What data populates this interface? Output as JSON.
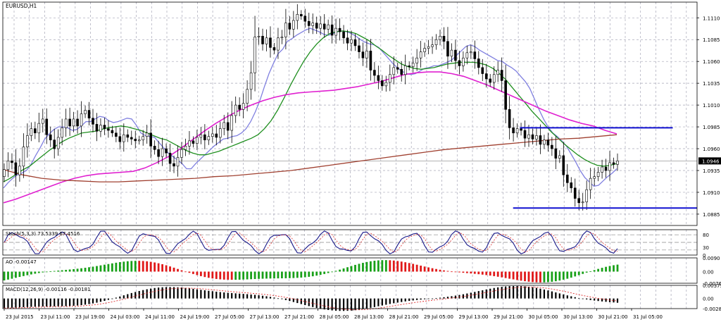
{
  "chart_data": {
    "type": "candlestick",
    "symbol_label": "EURUSD,H1",
    "price_axis": {
      "ylim": [
        1.0872,
        1.1128
      ],
      "ticks": [
        "1.1110",
        "1.1085",
        "1.1060",
        "1.1035",
        "1.1010",
        "1.0985",
        "1.0960",
        "1.0935",
        "1.0910",
        "1.0885"
      ],
      "current_price": "1.0946"
    },
    "time_axis": {
      "labels": [
        "23 Jul 2015",
        "23 Jul 11:00",
        "23 Jul 19:00",
        "24 Jul 03:00",
        "24 Jul 11:00",
        "24 Jul 19:00",
        "27 Jul 05:00",
        "27 Jul 13:00",
        "27 Jul 21:00",
        "28 Jul 05:00",
        "28 Jul 13:00",
        "28 Jul 21:00",
        "29 Jul 05:00",
        "29 Jul 13:00",
        "29 Jul 21:00",
        "30 Jul 05:00",
        "30 Jul 13:00",
        "30 Jul 21:00",
        "31 Jul 05:00"
      ]
    },
    "close": [
      1.0936,
      1.0946,
      1.0944,
      1.093,
      1.094,
      1.0962,
      1.0975,
      1.0983,
      1.0978,
      1.0989,
      1.0994,
      1.0976,
      1.097,
      1.096,
      1.0973,
      1.0984,
      1.0994,
      1.0986,
      1.0994,
      1.0986,
      1.1,
      1.1004,
      1.0995,
      1.0988,
      1.098,
      1.0987,
      1.0983,
      1.0981,
      1.0978,
      1.0974,
      1.0968,
      1.0976,
      1.0973,
      1.0971,
      1.0969,
      1.097,
      1.0974,
      1.0978,
      1.0963,
      1.0959,
      1.0951,
      1.096,
      1.0955,
      1.0943,
      1.094,
      1.095,
      1.0959,
      1.0963,
      1.0969,
      1.0966,
      1.0973,
      1.0976,
      1.097,
      1.0974,
      1.0977,
      1.0973,
      1.0983,
      1.099,
      1.0981,
      1.0998,
      1.101,
      1.1005,
      1.1012,
      1.1028,
      1.1047,
      1.1088,
      1.1089,
      1.108,
      1.1087,
      1.1076,
      1.1073,
      1.1087,
      1.1088,
      1.1104,
      1.1097,
      1.1107,
      1.1114,
      1.1112,
      1.1106,
      1.1101,
      1.1104,
      1.1098,
      1.1103,
      1.1097,
      1.1102,
      1.109,
      1.1098,
      1.1094,
      1.1087,
      1.1081,
      1.1085,
      1.1078,
      1.1071,
      1.1064,
      1.1072,
      1.105,
      1.1044,
      1.1038,
      1.1032,
      1.1036,
      1.1045,
      1.1053,
      1.1051,
      1.1045,
      1.1055,
      1.1054,
      1.1058,
      1.1064,
      1.1071,
      1.1075,
      1.1077,
      1.1079,
      1.1085,
      1.1089,
      1.1083,
      1.1066,
      1.1073,
      1.1061,
      1.1055,
      1.1064,
      1.107,
      1.1071,
      1.1063,
      1.1053,
      1.1046,
      1.104,
      1.1036,
      1.1045,
      1.105,
      1.1038,
      1.1005,
      1.0984,
      1.0978,
      1.0983,
      1.0981,
      1.0972,
      1.0976,
      1.0971,
      1.0975,
      1.0965,
      1.097,
      1.0964,
      1.096,
      1.0949,
      1.0952,
      1.093,
      1.0921,
      1.0915,
      1.0903,
      1.0898,
      1.0899,
      1.0913,
      1.0926,
      1.0928,
      1.0933,
      1.0939,
      1.0935,
      1.0944,
      1.0942,
      1.0946
    ],
    "indicators": [
      {
        "color": "#8080e0",
        "values": [
          1.0915,
          1.0921,
          1.0926,
          1.093,
          1.0932,
          1.0935,
          1.0942,
          1.0952,
          1.0961,
          1.0971,
          1.0977,
          1.0982,
          1.0985,
          1.0985,
          1.0984,
          1.0981,
          1.0982,
          1.0986,
          1.0991,
          1.0991,
          1.0994,
          1.0997,
          1.0996,
          1.0992,
          1.099,
          1.0991,
          1.0993,
          1.0995,
          1.0994,
          1.0987,
          1.0978,
          1.0975,
          1.0974,
          1.0973,
          1.0967,
          1.0961,
          1.0955,
          1.0951,
          1.0947,
          1.0943,
          1.0937,
          1.0937,
          1.0943,
          1.0948,
          1.0953,
          1.0958,
          1.0963,
          1.0967,
          1.0971,
          1.0972,
          1.0974,
          1.0975,
          1.0978,
          1.0983,
          1.0991,
          1.1002,
          1.1015,
          1.1031,
          1.1046,
          1.1058,
          1.1069,
          1.1074,
          1.1083,
          1.1086,
          1.109,
          1.1093,
          1.1096,
          1.1098,
          1.1096,
          1.1094,
          1.1091,
          1.109,
          1.1092,
          1.1094,
          1.1095,
          1.1094,
          1.1092,
          1.1089,
          1.1085,
          1.1082,
          1.108,
          1.1079,
          1.1076,
          1.107,
          1.1064,
          1.1058,
          1.1053,
          1.1049,
          1.1046,
          1.1045,
          1.1046,
          1.1049,
          1.1052,
          1.1053,
          1.1055,
          1.1055,
          1.1057,
          1.1059,
          1.1062,
          1.1067,
          1.1072,
          1.1077,
          1.1079,
          1.1077,
          1.1073,
          1.107,
          1.1067,
          1.1064,
          1.1061,
          1.106,
          1.1056,
          1.1053,
          1.1049,
          1.1043,
          1.1037,
          1.1029,
          1.1017,
          1.1005,
          1.0994,
          1.0985,
          1.0978,
          1.0974,
          1.0969,
          1.0963,
          1.0954,
          1.0945,
          1.0935,
          1.0927,
          1.0922,
          1.0917,
          1.0918,
          1.0923,
          1.0928,
          1.0932,
          1.0937
        ]
      },
      {
        "color": "#1f8f1f",
        "values": [
          1.0922,
          1.0926,
          1.0931,
          1.0936,
          1.094,
          1.0946,
          1.0952,
          1.0958,
          1.0963,
          1.0968,
          1.0972,
          1.0975,
          1.0978,
          1.0979,
          1.098,
          1.0982,
          1.0984,
          1.0985,
          1.0986,
          1.0985,
          1.0983,
          1.0981,
          1.0978,
          1.0975,
          1.0972,
          1.097,
          1.0966,
          1.0962,
          1.0958,
          1.0955,
          1.0953,
          1.0953,
          1.0955,
          1.0957,
          1.096,
          1.0963,
          1.0966,
          1.0969,
          1.0972,
          1.0976,
          1.0983,
          1.0992,
          1.1004,
          1.1018,
          1.1033,
          1.1047,
          1.106,
          1.1071,
          1.108,
          1.1087,
          1.1092,
          1.1094,
          1.1095,
          1.1094,
          1.1092,
          1.1088,
          1.1084,
          1.1078,
          1.1073,
          1.1067,
          1.1062,
          1.1057,
          1.1054,
          1.1052,
          1.1051,
          1.1052,
          1.1053,
          1.1055,
          1.1057,
          1.1058,
          1.1059,
          1.1059,
          1.1059,
          1.1058,
          1.1056,
          1.1052,
          1.1046,
          1.1039,
          1.103,
          1.1021,
          1.1012,
          1.1003,
          1.0995,
          1.0987,
          1.0979,
          1.0972,
          1.0965,
          1.0959,
          1.0953,
          1.0948,
          1.0944,
          1.0941,
          1.094,
          1.0941,
          1.0943
        ]
      },
      {
        "color": "#e020d0",
        "values": [
          1.0898,
          1.0902,
          1.0907,
          1.0912,
          1.0917,
          1.0922,
          1.0926,
          1.0929,
          1.0931,
          1.0932,
          1.0933,
          1.0934,
          1.0938,
          1.0944,
          1.0951,
          1.096,
          1.097,
          1.098,
          1.0989,
          1.0997,
          1.1004,
          1.101,
          1.1015,
          1.1019,
          1.1022,
          1.1024,
          1.1025,
          1.1026,
          1.1027,
          1.1029,
          1.1031,
          1.1034,
          1.1037,
          1.1041,
          1.1045,
          1.1047,
          1.1048,
          1.1048,
          1.1046,
          1.1043,
          1.1038,
          1.1033,
          1.1027,
          1.1021,
          1.1015,
          1.1009,
          1.1003,
          1.0998,
          1.0993,
          1.0989,
          1.0986,
          1.0981,
          1.0977
        ]
      },
      {
        "color": "#a04030",
        "values": [
          1.0936,
          1.093,
          1.0926,
          1.0924,
          1.0923,
          1.0922,
          1.0922,
          1.0923,
          1.0924,
          1.0925,
          1.0926,
          1.0928,
          1.0929,
          1.0931,
          1.0933,
          1.0935,
          1.0938,
          1.0941,
          1.0944,
          1.0947,
          1.095,
          1.0953,
          1.0956,
          1.0959,
          1.0961,
          1.0963,
          1.0965,
          1.0967,
          1.0969,
          1.0971,
          1.0972,
          1.0974,
          1.0976
        ]
      }
    ],
    "horizontal_lines": [
      {
        "price": 1.0984,
        "from_pct": 74.5,
        "to_pct": 96.5
      },
      {
        "price": 1.0892,
        "from_pct": 73.5,
        "to_pct": 100
      }
    ],
    "panes": {
      "stochastic": {
        "label": "Stoch(5,3,3) 73.5339 67.4516",
        "ticks": [
          "80",
          "30",
          "0"
        ],
        "levels": [
          80,
          20
        ]
      },
      "ao": {
        "label": "AO -0.00147",
        "ticks": [
          "0.0090",
          "0.00",
          "-0.00763"
        ],
        "ylim": [
          -0.00763,
          0.009
        ]
      },
      "macd": {
        "label": "MACD(12,26,9) -0.00116 -0.00181",
        "ticks": [
          "0.00375",
          "0.00",
          "-0.00289"
        ],
        "ylim": [
          -0.00289,
          0.00375
        ]
      }
    }
  }
}
